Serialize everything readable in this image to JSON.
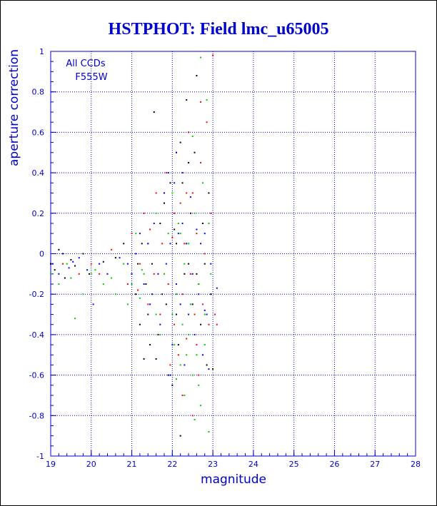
{
  "chart_data": {
    "type": "scatter",
    "title": "HSTPHOT: Field lmc_u65005",
    "xlabel": "magnitude",
    "ylabel": "aperture correction",
    "xlim": [
      19,
      28
    ],
    "ylim": [
      -1,
      1
    ],
    "x_ticks": [
      19,
      20,
      21,
      22,
      23,
      24,
      25,
      26,
      27,
      28
    ],
    "y_ticks": [
      -1,
      -0.8,
      -0.6,
      -0.4,
      -0.2,
      0,
      0.2,
      0.4,
      0.6,
      0.8,
      1
    ],
    "grid": true,
    "grid_style": "dotted",
    "annotations": [
      "All CCDs",
      "F555W"
    ],
    "series_colors": [
      "#000000",
      "#ff0000",
      "#00cc00",
      "#0000ff"
    ],
    "series": [
      {
        "color": "#000000",
        "points": [
          [
            19.0,
            -0.05
          ],
          [
            19.1,
            -0.08
          ],
          [
            19.2,
            0.02
          ],
          [
            19.35,
            -0.12
          ],
          [
            19.5,
            -0.03
          ],
          [
            19.6,
            -0.06
          ],
          [
            19.8,
            0.0
          ],
          [
            19.95,
            -0.1
          ],
          [
            20.3,
            -0.04
          ],
          [
            20.6,
            -0.02
          ],
          [
            20.8,
            0.05
          ],
          [
            21.0,
            -0.1
          ],
          [
            21.1,
            -0.2
          ],
          [
            21.2,
            -0.35
          ],
          [
            21.25,
            0.05
          ],
          [
            21.3,
            -0.52
          ],
          [
            21.35,
            -0.15
          ],
          [
            21.4,
            -0.3
          ],
          [
            21.5,
            -0.05
          ],
          [
            21.55,
            0.7
          ],
          [
            21.6,
            -0.52
          ],
          [
            21.65,
            -0.4
          ],
          [
            21.7,
            0.15
          ],
          [
            21.8,
            0.25
          ],
          [
            21.85,
            -0.25
          ],
          [
            21.9,
            -0.6
          ],
          [
            21.95,
            0.35
          ],
          [
            22.0,
            -0.65
          ],
          [
            22.05,
            0.12
          ],
          [
            22.1,
            -0.3
          ],
          [
            22.15,
            -0.45
          ],
          [
            22.2,
            0.55
          ],
          [
            22.25,
            0.35
          ],
          [
            22.3,
            -0.1
          ],
          [
            22.35,
            0.76
          ],
          [
            22.4,
            -0.05
          ],
          [
            22.45,
            0.2
          ],
          [
            22.5,
            -0.25
          ],
          [
            22.55,
            0.5
          ],
          [
            22.6,
            0.88
          ],
          [
            22.65,
            -0.15
          ],
          [
            22.7,
            -0.35
          ],
          [
            22.75,
            0.15
          ],
          [
            22.8,
            -0.05
          ],
          [
            22.85,
            -0.55
          ],
          [
            22.9,
            0.3
          ],
          [
            22.95,
            -0.2
          ],
          [
            23.0,
            -0.57
          ],
          [
            22.2,
            -0.9
          ],
          [
            21.45,
            -0.45
          ],
          [
            22.1,
            0.05
          ],
          [
            21.15,
            -0.05
          ],
          [
            22.6,
            -0.1
          ],
          [
            21.75,
            -0.2
          ],
          [
            22.4,
            0.45
          ]
        ]
      },
      {
        "color": "#ff0000",
        "points": [
          [
            19.3,
            -0.05
          ],
          [
            19.7,
            -0.1
          ],
          [
            20.0,
            -0.05
          ],
          [
            20.2,
            -0.1
          ],
          [
            20.5,
            0.02
          ],
          [
            20.9,
            -0.15
          ],
          [
            21.0,
            0.1
          ],
          [
            21.2,
            -0.05
          ],
          [
            21.3,
            0.2
          ],
          [
            21.4,
            -0.25
          ],
          [
            21.45,
            0.12
          ],
          [
            21.6,
            0.3
          ],
          [
            21.7,
            -0.3
          ],
          [
            21.75,
            0.05
          ],
          [
            21.85,
            0.4
          ],
          [
            21.9,
            -0.15
          ],
          [
            22.0,
            0.08
          ],
          [
            22.05,
            -0.35
          ],
          [
            22.1,
            0.5
          ],
          [
            22.15,
            -0.5
          ],
          [
            22.2,
            0.25
          ],
          [
            22.25,
            -0.2
          ],
          [
            22.3,
            0.05
          ],
          [
            22.35,
            -0.42
          ],
          [
            22.4,
            0.6
          ],
          [
            22.45,
            -0.1
          ],
          [
            22.5,
            0.3
          ],
          [
            22.55,
            -0.3
          ],
          [
            22.6,
            0.1
          ],
          [
            22.65,
            -0.6
          ],
          [
            22.7,
            0.45
          ],
          [
            22.75,
            -0.25
          ],
          [
            22.8,
            0.0
          ],
          [
            22.85,
            0.65
          ],
          [
            22.9,
            -0.35
          ],
          [
            22.95,
            0.2
          ],
          [
            23.0,
            0.98
          ],
          [
            23.05,
            -0.3
          ],
          [
            22.25,
            -0.7
          ],
          [
            22.5,
            -0.8
          ],
          [
            22.7,
            0.75
          ],
          [
            21.95,
            -0.55
          ],
          [
            22.05,
            0.2
          ],
          [
            21.55,
            -0.1
          ],
          [
            22.35,
            0.3
          ],
          [
            23.1,
            -0.35
          ],
          [
            21.15,
            -0.18
          ],
          [
            22.6,
            -0.45
          ]
        ]
      },
      {
        "color": "#00cc00",
        "points": [
          [
            19.0,
            -0.1
          ],
          [
            19.2,
            -0.15
          ],
          [
            19.4,
            -0.05
          ],
          [
            19.5,
            -0.12
          ],
          [
            19.6,
            -0.32
          ],
          [
            19.8,
            -0.2
          ],
          [
            20.0,
            -0.1
          ],
          [
            20.1,
            -0.08
          ],
          [
            20.3,
            -0.15
          ],
          [
            20.5,
            -0.12
          ],
          [
            20.6,
            -0.2
          ],
          [
            20.8,
            -0.05
          ],
          [
            21.0,
            -0.15
          ],
          [
            21.1,
            0.1
          ],
          [
            21.2,
            -0.22
          ],
          [
            21.3,
            -0.1
          ],
          [
            21.4,
            0.05
          ],
          [
            21.5,
            -0.2
          ],
          [
            21.6,
            0.2
          ],
          [
            21.7,
            -0.4
          ],
          [
            21.8,
            -0.1
          ],
          [
            21.9,
            0.1
          ],
          [
            22.0,
            -0.3
          ],
          [
            22.05,
            -0.45
          ],
          [
            22.1,
            -0.2
          ],
          [
            22.15,
            0.15
          ],
          [
            22.2,
            -0.55
          ],
          [
            22.25,
            -0.35
          ],
          [
            22.3,
            -0.05
          ],
          [
            22.35,
            -0.5
          ],
          [
            22.4,
            0.05
          ],
          [
            22.45,
            -0.25
          ],
          [
            22.5,
            -0.6
          ],
          [
            22.55,
            0.2
          ],
          [
            22.6,
            -0.5
          ],
          [
            22.65,
            -0.15
          ],
          [
            22.7,
            -0.75
          ],
          [
            22.75,
            0.35
          ],
          [
            22.8,
            -0.3
          ],
          [
            22.85,
            0.76
          ],
          [
            22.9,
            -0.88
          ],
          [
            22.95,
            -0.1
          ],
          [
            22.7,
            0.97
          ],
          [
            22.5,
            0.58
          ],
          [
            22.2,
            0.1
          ],
          [
            22.3,
            -0.7
          ],
          [
            22.55,
            -0.82
          ],
          [
            22.8,
            -0.45
          ],
          [
            21.6,
            -0.3
          ],
          [
            22.0,
            0.3
          ],
          [
            22.4,
            -0.4
          ],
          [
            22.65,
            -0.65
          ],
          [
            21.25,
            -0.08
          ],
          [
            20.9,
            -0.25
          ],
          [
            22.1,
            -0.62
          ],
          [
            22.9,
            0.15
          ]
        ]
      },
      {
        "color": "#0000ff",
        "points": [
          [
            19.05,
            -0.05
          ],
          [
            19.2,
            -0.1
          ],
          [
            19.3,
            0.0
          ],
          [
            19.45,
            -0.07
          ],
          [
            19.55,
            -0.04
          ],
          [
            19.7,
            -0.02
          ],
          [
            19.9,
            -0.08
          ],
          [
            20.05,
            -0.25
          ],
          [
            20.2,
            -0.05
          ],
          [
            20.4,
            -0.1
          ],
          [
            20.7,
            -0.02
          ],
          [
            20.9,
            -0.05
          ],
          [
            21.0,
            -0.1
          ],
          [
            21.1,
            0.0
          ],
          [
            21.2,
            0.1
          ],
          [
            21.3,
            -0.15
          ],
          [
            21.4,
            0.05
          ],
          [
            21.5,
            -0.2
          ],
          [
            21.55,
            0.15
          ],
          [
            21.65,
            -0.1
          ],
          [
            21.7,
            -0.35
          ],
          [
            21.8,
            0.3
          ],
          [
            21.85,
            -0.05
          ],
          [
            21.95,
            0.05
          ],
          [
            22.0,
            -0.45
          ],
          [
            22.05,
            0.35
          ],
          [
            22.1,
            -0.15
          ],
          [
            22.15,
            0.1
          ],
          [
            22.2,
            -0.25
          ],
          [
            22.25,
            0.15
          ],
          [
            22.3,
            -0.55
          ],
          [
            22.35,
            0.05
          ],
          [
            22.4,
            -0.3
          ],
          [
            22.45,
            0.28
          ],
          [
            22.5,
            -0.1
          ],
          [
            22.55,
            -0.4
          ],
          [
            22.6,
            0.12
          ],
          [
            22.65,
            -0.2
          ],
          [
            22.7,
            0.05
          ],
          [
            22.75,
            -0.5
          ],
          [
            22.8,
            0.1
          ],
          [
            22.85,
            -0.3
          ],
          [
            22.9,
            -0.57
          ],
          [
            22.95,
            -0.05
          ],
          [
            23.1,
            -0.17
          ],
          [
            22.25,
            0.4
          ],
          [
            21.95,
            -0.6
          ],
          [
            22.8,
            -0.28
          ],
          [
            22.1,
            0.5
          ],
          [
            21.45,
            -0.25
          ],
          [
            21.9,
            0.4
          ]
        ]
      }
    ]
  }
}
